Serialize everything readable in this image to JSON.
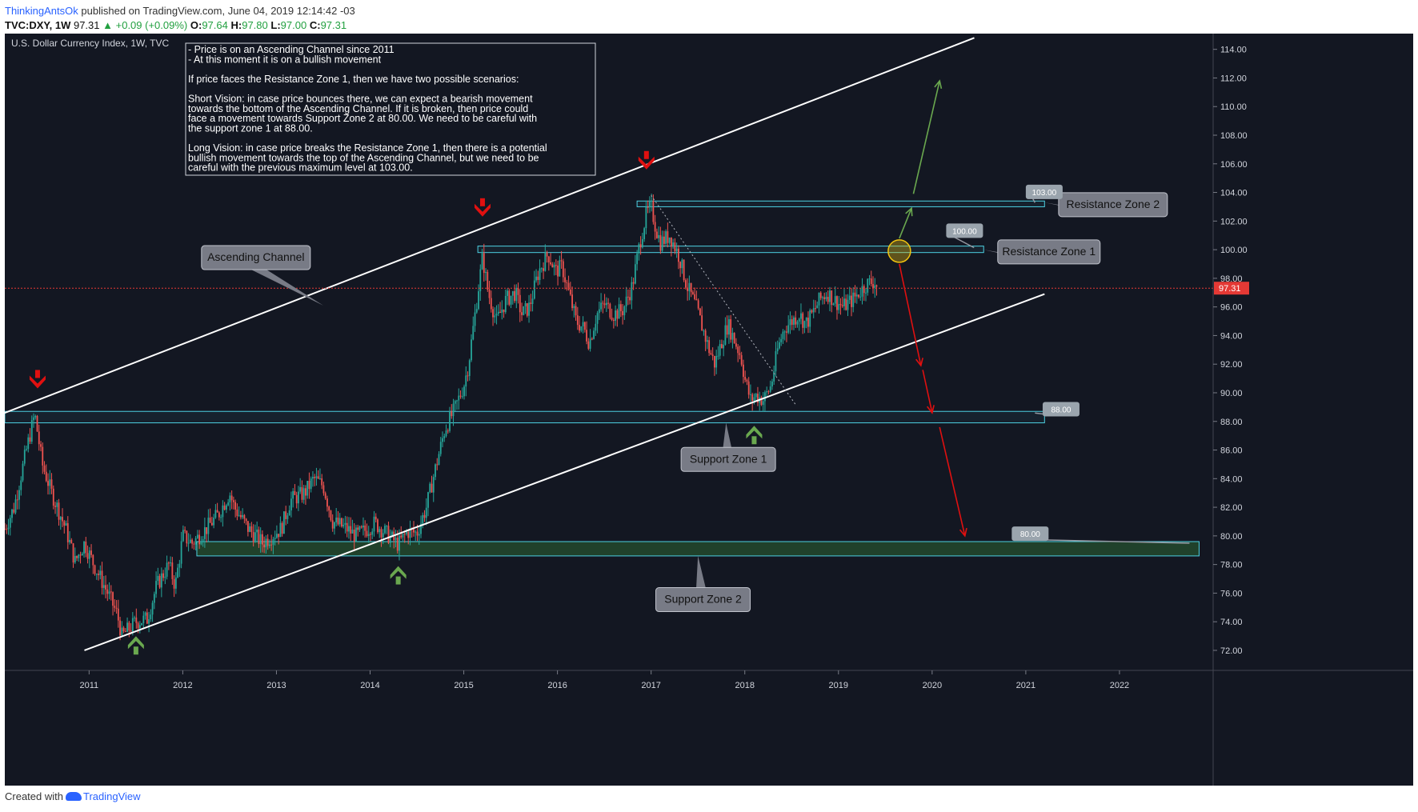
{
  "header": {
    "author": "ThinkingAntsOk",
    "published_text": "published on TradingView.com, June 04, 2019 12:14:42 -03"
  },
  "ohlc": {
    "symbol": "TVC:DXY, 1W",
    "last": "97.31",
    "change": "▲ +0.09 (+0.09%)",
    "open_label": "O:",
    "open": "97.64",
    "high_label": "H:",
    "high": "97.80",
    "low_label": "L:",
    "low": "97.00",
    "close_label": "C:",
    "close": "97.31"
  },
  "footer": {
    "created_text": "Created with",
    "brand": "TradingView"
  },
  "colors": {
    "background": "#131722",
    "up": "#26a69a",
    "down": "#ef5350",
    "zone_line": "#4dd0e1",
    "channel": "#ffffff",
    "arrow_green": "#6aa84f",
    "arrow_red": "#e01010",
    "price_line": "#e53935",
    "callout_fill": "#787b86"
  },
  "chart_data": {
    "type": "candlestick",
    "title": "U.S. Dollar Currency Index, 1W, TVC",
    "timeframe": "1W",
    "x_ticks": [
      "2011",
      "2012",
      "2013",
      "2014",
      "2015",
      "2016",
      "2017",
      "2018",
      "2019",
      "2020",
      "2021",
      "2022"
    ],
    "y_ticks": [
      "72.00",
      "74.00",
      "76.00",
      "78.00",
      "80.00",
      "82.00",
      "84.00",
      "86.00",
      "88.00",
      "90.00",
      "92.00",
      "94.00",
      "96.00",
      "98.00",
      "100.00",
      "102.00",
      "104.00",
      "106.00",
      "108.00",
      "110.00",
      "112.00",
      "114.00"
    ],
    "y_range": [
      70.6,
      115.1
    ],
    "x_range": [
      2010.1,
      2023.0
    ],
    "last_price": 97.31,
    "last_price_label": "97.31",
    "price_path": [
      [
        2010.1,
        80.5
      ],
      [
        2010.2,
        82.0
      ],
      [
        2010.33,
        86.0
      ],
      [
        2010.42,
        88.5
      ],
      [
        2010.5,
        85.0
      ],
      [
        2010.6,
        83.0
      ],
      [
        2010.75,
        80.5
      ],
      [
        2010.85,
        78.2
      ],
      [
        2010.95,
        79.5
      ],
      [
        2011.05,
        78.0
      ],
      [
        2011.2,
        76.0
      ],
      [
        2011.3,
        74.5
      ],
      [
        2011.35,
        73.0
      ],
      [
        2011.5,
        74.0
      ],
      [
        2011.62,
        74.2
      ],
      [
        2011.72,
        76.5
      ],
      [
        2011.85,
        78.0
      ],
      [
        2011.92,
        76.5
      ],
      [
        2012.0,
        80.0
      ],
      [
        2012.1,
        79.5
      ],
      [
        2012.25,
        80.5
      ],
      [
        2012.38,
        81.5
      ],
      [
        2012.5,
        83.0
      ],
      [
        2012.55,
        82.0
      ],
      [
        2012.7,
        80.5
      ],
      [
        2012.85,
        79.5
      ],
      [
        2012.95,
        80.0
      ],
      [
        2013.05,
        80.5
      ],
      [
        2013.15,
        82.5
      ],
      [
        2013.3,
        83.0
      ],
      [
        2013.4,
        84.0
      ],
      [
        2013.5,
        83.5
      ],
      [
        2013.6,
        81.0
      ],
      [
        2013.75,
        80.5
      ],
      [
        2013.85,
        80.0
      ],
      [
        2013.95,
        80.4
      ],
      [
        2014.05,
        80.9
      ],
      [
        2014.15,
        80.3
      ],
      [
        2014.3,
        79.4
      ],
      [
        2014.4,
        80.3
      ],
      [
        2014.5,
        80.2
      ],
      [
        2014.6,
        82.0
      ],
      [
        2014.7,
        84.8
      ],
      [
        2014.8,
        87.5
      ],
      [
        2014.9,
        88.8
      ],
      [
        2015.0,
        90.5
      ],
      [
        2015.05,
        92.0
      ],
      [
        2015.12,
        95.5
      ],
      [
        2015.2,
        99.5
      ],
      [
        2015.26,
        97.0
      ],
      [
        2015.35,
        95.0
      ],
      [
        2015.45,
        96.5
      ],
      [
        2015.55,
        97.0
      ],
      [
        2015.62,
        95.5
      ],
      [
        2015.7,
        96.0
      ],
      [
        2015.8,
        98.5
      ],
      [
        2015.9,
        99.7
      ],
      [
        2015.98,
        98.5
      ],
      [
        2016.05,
        98.8
      ],
      [
        2016.12,
        97.0
      ],
      [
        2016.2,
        95.0
      ],
      [
        2016.28,
        94.5
      ],
      [
        2016.34,
        93.5
      ],
      [
        2016.42,
        95.5
      ],
      [
        2016.5,
        96.2
      ],
      [
        2016.6,
        95.5
      ],
      [
        2016.7,
        95.8
      ],
      [
        2016.8,
        97.5
      ],
      [
        2016.88,
        100.5
      ],
      [
        2016.95,
        102.5
      ],
      [
        2017.0,
        103.0
      ],
      [
        2017.05,
        101.5
      ],
      [
        2017.1,
        100.5
      ],
      [
        2017.2,
        101.0
      ],
      [
        2017.3,
        99.5
      ],
      [
        2017.38,
        97.5
      ],
      [
        2017.48,
        96.0
      ],
      [
        2017.55,
        94.5
      ],
      [
        2017.62,
        93.0
      ],
      [
        2017.68,
        92.0
      ],
      [
        2017.75,
        93.5
      ],
      [
        2017.82,
        94.8
      ],
      [
        2017.9,
        93.5
      ],
      [
        2017.96,
        92.5
      ],
      [
        2018.0,
        91.0
      ],
      [
        2018.06,
        89.5
      ],
      [
        2018.12,
        89.8
      ],
      [
        2018.2,
        89.5
      ],
      [
        2018.28,
        90.5
      ],
      [
        2018.35,
        93.0
      ],
      [
        2018.42,
        94.5
      ],
      [
        2018.5,
        95.0
      ],
      [
        2018.58,
        95.5
      ],
      [
        2018.65,
        94.8
      ],
      [
        2018.72,
        95.5
      ],
      [
        2018.8,
        96.5
      ],
      [
        2018.88,
        97.0
      ],
      [
        2018.95,
        96.5
      ],
      [
        2019.05,
        96.0
      ],
      [
        2019.15,
        96.5
      ],
      [
        2019.22,
        97.0
      ],
      [
        2019.3,
        97.6
      ],
      [
        2019.38,
        97.8
      ],
      [
        2019.42,
        97.3
      ]
    ],
    "channel_upper": [
      [
        2010.1,
        88.6
      ],
      [
        2020.45,
        114.8
      ]
    ],
    "channel_lower": [
      [
        2010.95,
        72.0
      ],
      [
        2021.2,
        96.9
      ]
    ],
    "zones": [
      {
        "name": "Resistance Zone 2",
        "low": 103.0,
        "high": 103.4,
        "from": 2016.85,
        "to": 2021.2,
        "price_tag": "103.00"
      },
      {
        "name": "Resistance Zone 1",
        "low": 99.8,
        "high": 100.25,
        "from": 2015.15,
        "to": 2020.55,
        "price_tag": "100.00"
      },
      {
        "name": "Support Zone 1",
        "low": 87.9,
        "high": 88.7,
        "from": 2010.1,
        "to": 2021.2,
        "price_tag": "88.00"
      },
      {
        "name": "Support Zone 2",
        "low": 78.6,
        "high": 79.6,
        "from": 2012.15,
        "to": 2022.85,
        "price_tag": "80.00"
      }
    ],
    "labels": [
      {
        "text": "Ascending Channel",
        "x": 2013.6,
        "y": 96.1
      },
      {
        "text": "Resistance Zone 1",
        "x": 2020.6,
        "y": 100.0
      },
      {
        "text": "Resistance Zone 2",
        "x": 2021.3,
        "y": 103.3
      },
      {
        "text": "Support Zone 1",
        "x": 2017.9,
        "y": 88.3
      },
      {
        "text": "Support Zone 2",
        "x": 2017.7,
        "y": 79.3
      }
    ],
    "markers_down": [
      [
        2010.45,
        90.7
      ],
      [
        2015.2,
        102.7
      ],
      [
        2016.95,
        106.0
      ]
    ],
    "markers_up": [
      [
        2011.5,
        72.6
      ],
      [
        2014.3,
        77.5
      ],
      [
        2018.1,
        87.3
      ]
    ],
    "annotation_lines": [
      "- Price is on an Ascending Channel since 2011",
      "- At this moment it is on a bullish movement",
      "",
      "If price faces the Resistance Zone 1, then we have two possible scenarios:",
      "",
      "Short Vision: in case price bounces there, we can expect a bearish movement",
      "towards the bottom of the Ascending Channel. If it is broken, then price could",
      "face a movement towards Support Zone 2 at 80.00. We need to be careful with",
      "the support zone 1 at 88.00.",
      "",
      "Long Vision: in case price breaks the Resistance Zone 1, then there is a potential",
      "bullish movement towards the top of the Ascending Channel, but we need to be",
      "careful with the previous maximum level at 103.00."
    ]
  }
}
